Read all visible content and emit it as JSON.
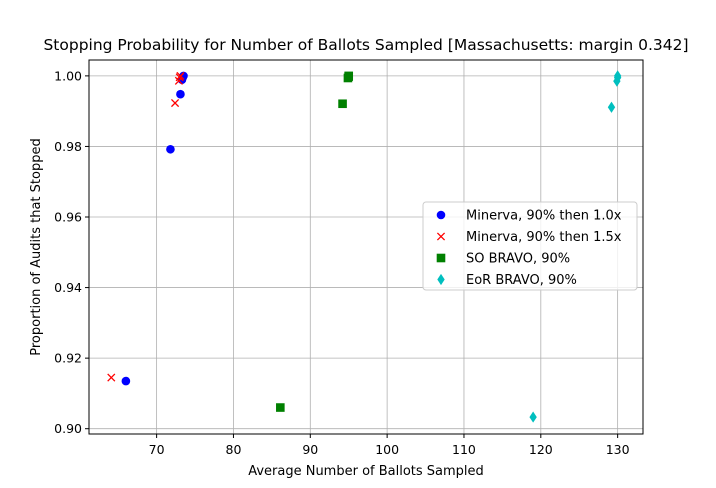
{
  "chart_data": {
    "type": "scatter",
    "title": "Stopping Probability for Number of Ballots Sampled [Massachusetts: margin 0.342]",
    "xlabel": "Average Number of Ballots Sampled",
    "ylabel": "Proportion of Audits that Stopped",
    "xlim": [
      61.2,
      133.3
    ],
    "ylim": [
      0.8985,
      1.0045
    ],
    "x_ticks": [
      70,
      80,
      90,
      100,
      110,
      120,
      130
    ],
    "y_ticks": [
      0.9,
      0.92,
      0.94,
      0.96,
      0.98,
      1.0
    ],
    "x_tick_labels": [
      "70",
      "80",
      "90",
      "100",
      "110",
      "120",
      "130"
    ],
    "y_tick_labels": [
      "0.90",
      "0.92",
      "0.94",
      "0.96",
      "0.98",
      "1.00"
    ],
    "grid": true,
    "legend_position": "center-right",
    "series": [
      {
        "name": "Minerva, 90% then 1.0x",
        "marker": "circle",
        "color": "#0000ff",
        "points": [
          [
            66.0,
            0.9135
          ],
          [
            71.8,
            0.9792
          ],
          [
            73.1,
            0.9948
          ],
          [
            73.3,
            0.9989
          ],
          [
            73.4,
            0.9996
          ],
          [
            73.5,
            1.0
          ]
        ]
      },
      {
        "name": "Minerva, 90% then 1.5x",
        "marker": "x",
        "color": "#ff0000",
        "points": [
          [
            64.1,
            0.9145
          ],
          [
            72.4,
            0.9923
          ],
          [
            72.9,
            0.9986
          ],
          [
            73.0,
            0.9996
          ],
          [
            73.1,
            1.0
          ]
        ]
      },
      {
        "name": "SO BRAVO, 90%",
        "marker": "square",
        "color": "#008000",
        "points": [
          [
            86.1,
            0.906
          ],
          [
            94.2,
            0.9921
          ],
          [
            94.9,
            0.9994
          ],
          [
            95.0,
            0.9998
          ],
          [
            95.0,
            1.0
          ]
        ]
      },
      {
        "name": "EoR BRAVO, 90%",
        "marker": "diamond",
        "color": "#00bfbf",
        "points": [
          [
            119.0,
            0.9033
          ],
          [
            129.2,
            0.9911
          ],
          [
            129.9,
            0.9985
          ],
          [
            130.0,
            0.9995
          ],
          [
            130.0,
            1.0
          ]
        ]
      }
    ]
  }
}
